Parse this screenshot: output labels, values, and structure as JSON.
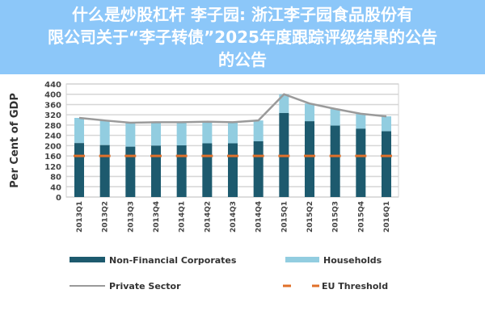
{
  "chart_data": {
    "type": "bar",
    "stacked": true,
    "ylabel": "Per Cent of GDP",
    "ylim": [
      0,
      440
    ],
    "yticks": [
      0,
      40,
      80,
      120,
      160,
      200,
      240,
      280,
      320,
      360,
      400,
      440
    ],
    "grid": true,
    "legend_placement": "bottom",
    "categories": [
      "2013Q1",
      "2013Q2",
      "2013Q3",
      "2013Q4",
      "2014Q1",
      "2014Q2",
      "2014Q3",
      "2014Q4",
      "2015Q1",
      "2015Q2",
      "2015Q3",
      "2015Q4",
      "2016Q1"
    ],
    "series": [
      {
        "name": "Non-Financial Corporates",
        "kind": "bar",
        "color": "#1d5a6e",
        "values": [
          210,
          202,
          196,
          200,
          201,
          209,
          209,
          217,
          327,
          295,
          278,
          266,
          256
        ]
      },
      {
        "name": "Households",
        "kind": "bar",
        "color": "#92cde0",
        "values": [
          98,
          96,
          93,
          91,
          90,
          84,
          82,
          81,
          73,
          69,
          65,
          58,
          58
        ]
      },
      {
        "name": "Private Sector",
        "kind": "line",
        "color": "#9a9a9a",
        "values": [
          308,
          298,
          289,
          291,
          291,
          293,
          291,
          298,
          400,
          364,
          343,
          324,
          314
        ]
      },
      {
        "name": "EU Threshold",
        "kind": "dashed-line",
        "color": "#e0702a",
        "values": [
          160,
          160,
          160,
          160,
          160,
          160,
          160,
          160,
          160,
          160,
          160,
          160,
          160
        ]
      }
    ]
  },
  "banner": {
    "title_lines": [
      "什么是炒股杠杆 李子园: 浙江李子园食品股份有",
      "限公司关于“李子转债”2025年度跟踪评级结果的公告",
      "的公告"
    ]
  }
}
